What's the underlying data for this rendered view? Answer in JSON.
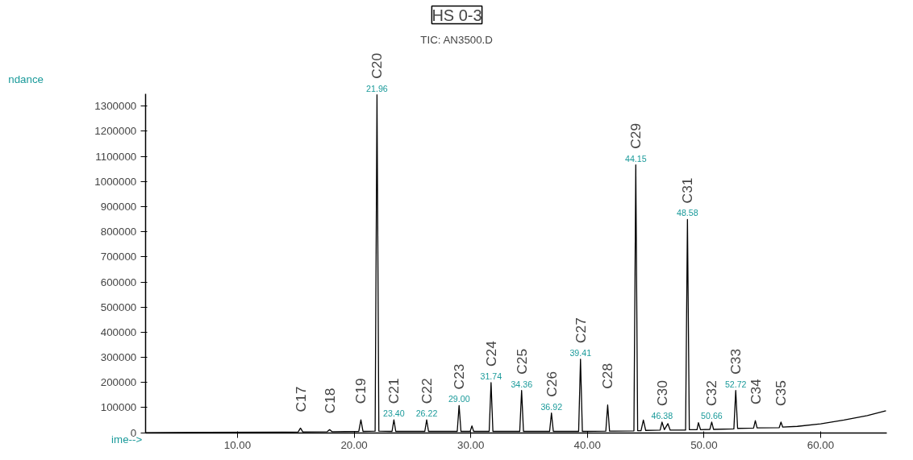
{
  "chart_data": {
    "type": "line",
    "title": "HS 0-3",
    "subtitle": "TIC: AN3500.D",
    "xlabel": "ime-->",
    "ylabel": "ndance",
    "xlim": [
      2.1,
      65.7
    ],
    "ylim": [
      0,
      1350000
    ],
    "xticks": [
      {
        "value": 10,
        "label": "10.00"
      },
      {
        "value": 20,
        "label": "20.00"
      },
      {
        "value": 30,
        "label": "30.00"
      },
      {
        "value": 40,
        "label": "40.00"
      },
      {
        "value": 50,
        "label": "50.00"
      },
      {
        "value": 60,
        "label": "60.00"
      }
    ],
    "yticks": [
      0,
      100000,
      200000,
      300000,
      400000,
      500000,
      600000,
      700000,
      800000,
      900000,
      1000000,
      1100000,
      1200000,
      1300000
    ],
    "grid": false,
    "marker": "none",
    "line_style": "solid",
    "x": [
      2.1,
      14,
      15.2,
      15.4,
      15.6,
      17.7,
      17.9,
      18.1,
      20.4,
      20.58,
      20.76,
      21.8,
      21.96,
      22.12,
      23.25,
      23.41,
      23.57,
      26.06,
      26.22,
      26.38,
      28.84,
      29.0,
      29.16,
      29.95,
      30.1,
      30.25,
      31.58,
      31.74,
      31.9,
      34.2,
      34.36,
      34.52,
      36.76,
      36.92,
      37.08,
      39.25,
      39.41,
      39.57,
      41.58,
      41.74,
      41.9,
      43.99,
      44.15,
      44.31,
      44.6,
      44.8,
      45.0,
      46.24,
      46.4,
      46.6,
      46.9,
      47.1,
      48.42,
      48.58,
      48.74,
      49.4,
      49.52,
      49.7,
      50.5,
      50.66,
      50.82,
      52.56,
      52.72,
      52.88,
      54.25,
      54.4,
      54.55,
      56.45,
      56.6,
      56.75,
      58,
      60,
      62,
      64,
      65.6
    ],
    "series": [
      {
        "color": "#000000",
        "values": [
          0,
          2000,
          3000,
          18000,
          3000,
          4000,
          12000,
          4000,
          5000,
          51000,
          5000,
          6000,
          1345000,
          6000,
          5000,
          51000,
          5000,
          5000,
          51000,
          5000,
          5000,
          108000,
          5000,
          5000,
          27000,
          5000,
          5000,
          199000,
          5000,
          5000,
          168000,
          5000,
          5000,
          78000,
          5000,
          5000,
          292000,
          5000,
          6000,
          110000,
          6000,
          7000,
          1066000,
          8000,
          8000,
          50000,
          9000,
          10000,
          42000,
          12000,
          36000,
          10000,
          10000,
          849000,
          12000,
          12000,
          40000,
          12000,
          13000,
          42000,
          13000,
          15000,
          168000,
          17000,
          18000,
          48000,
          19000,
          20000,
          42000,
          22000,
          25000,
          35000,
          50000,
          68000,
          87000
        ]
      }
    ],
    "annotations": [
      {
        "text": "C17",
        "x": 15.4,
        "y": 18000
      },
      {
        "text": "C18",
        "x": 17.9,
        "y": 12000
      },
      {
        "text": "C19",
        "x": 20.58,
        "y": 51000
      },
      {
        "text": "C20",
        "x": 21.96,
        "y": 1345000
      },
      {
        "text": "C21",
        "x": 23.41,
        "y": 51000
      },
      {
        "text": "C22",
        "x": 26.22,
        "y": 51000
      },
      {
        "text": "C23",
        "x": 29.0,
        "y": 108000
      },
      {
        "text": "C24",
        "x": 31.74,
        "y": 199000
      },
      {
        "text": "C25",
        "x": 34.36,
        "y": 168000
      },
      {
        "text": "C26",
        "x": 36.92,
        "y": 78000
      },
      {
        "text": "C27",
        "x": 39.41,
        "y": 292000
      },
      {
        "text": "C28",
        "x": 41.74,
        "y": 110000
      },
      {
        "text": "C29",
        "x": 44.15,
        "y": 1066000
      },
      {
        "text": "C30",
        "x": 46.4,
        "y": 42000
      },
      {
        "text": "C31",
        "x": 48.58,
        "y": 849000
      },
      {
        "text": "C32",
        "x": 50.66,
        "y": 42000
      },
      {
        "text": "C33",
        "x": 52.72,
        "y": 168000
      },
      {
        "text": "C34",
        "x": 54.4,
        "y": 48000
      },
      {
        "text": "C35",
        "x": 56.6,
        "y": 42000
      },
      {
        "text": "21.96",
        "x": 21.96,
        "y": 1345000
      },
      {
        "text": "23.40",
        "x": 23.41,
        "y": 51000
      },
      {
        "text": "26.22",
        "x": 26.22,
        "y": 51000
      },
      {
        "text": "29.00",
        "x": 29.0,
        "y": 108000
      },
      {
        "text": "31.74",
        "x": 31.74,
        "y": 199000
      },
      {
        "text": "34.36",
        "x": 34.36,
        "y": 168000
      },
      {
        "text": "36.92",
        "x": 36.92,
        "y": 78000
      },
      {
        "text": "39.41",
        "x": 39.41,
        "y": 292000
      },
      {
        "text": "44.15",
        "x": 44.15,
        "y": 1066000
      },
      {
        "text": "46.38",
        "x": 46.4,
        "y": 42000
      },
      {
        "text": "48.58",
        "x": 48.58,
        "y": 849000
      },
      {
        "text": "50.66",
        "x": 50.66,
        "y": 42000
      },
      {
        "text": "52.72",
        "x": 52.72,
        "y": 168000
      }
    ]
  }
}
